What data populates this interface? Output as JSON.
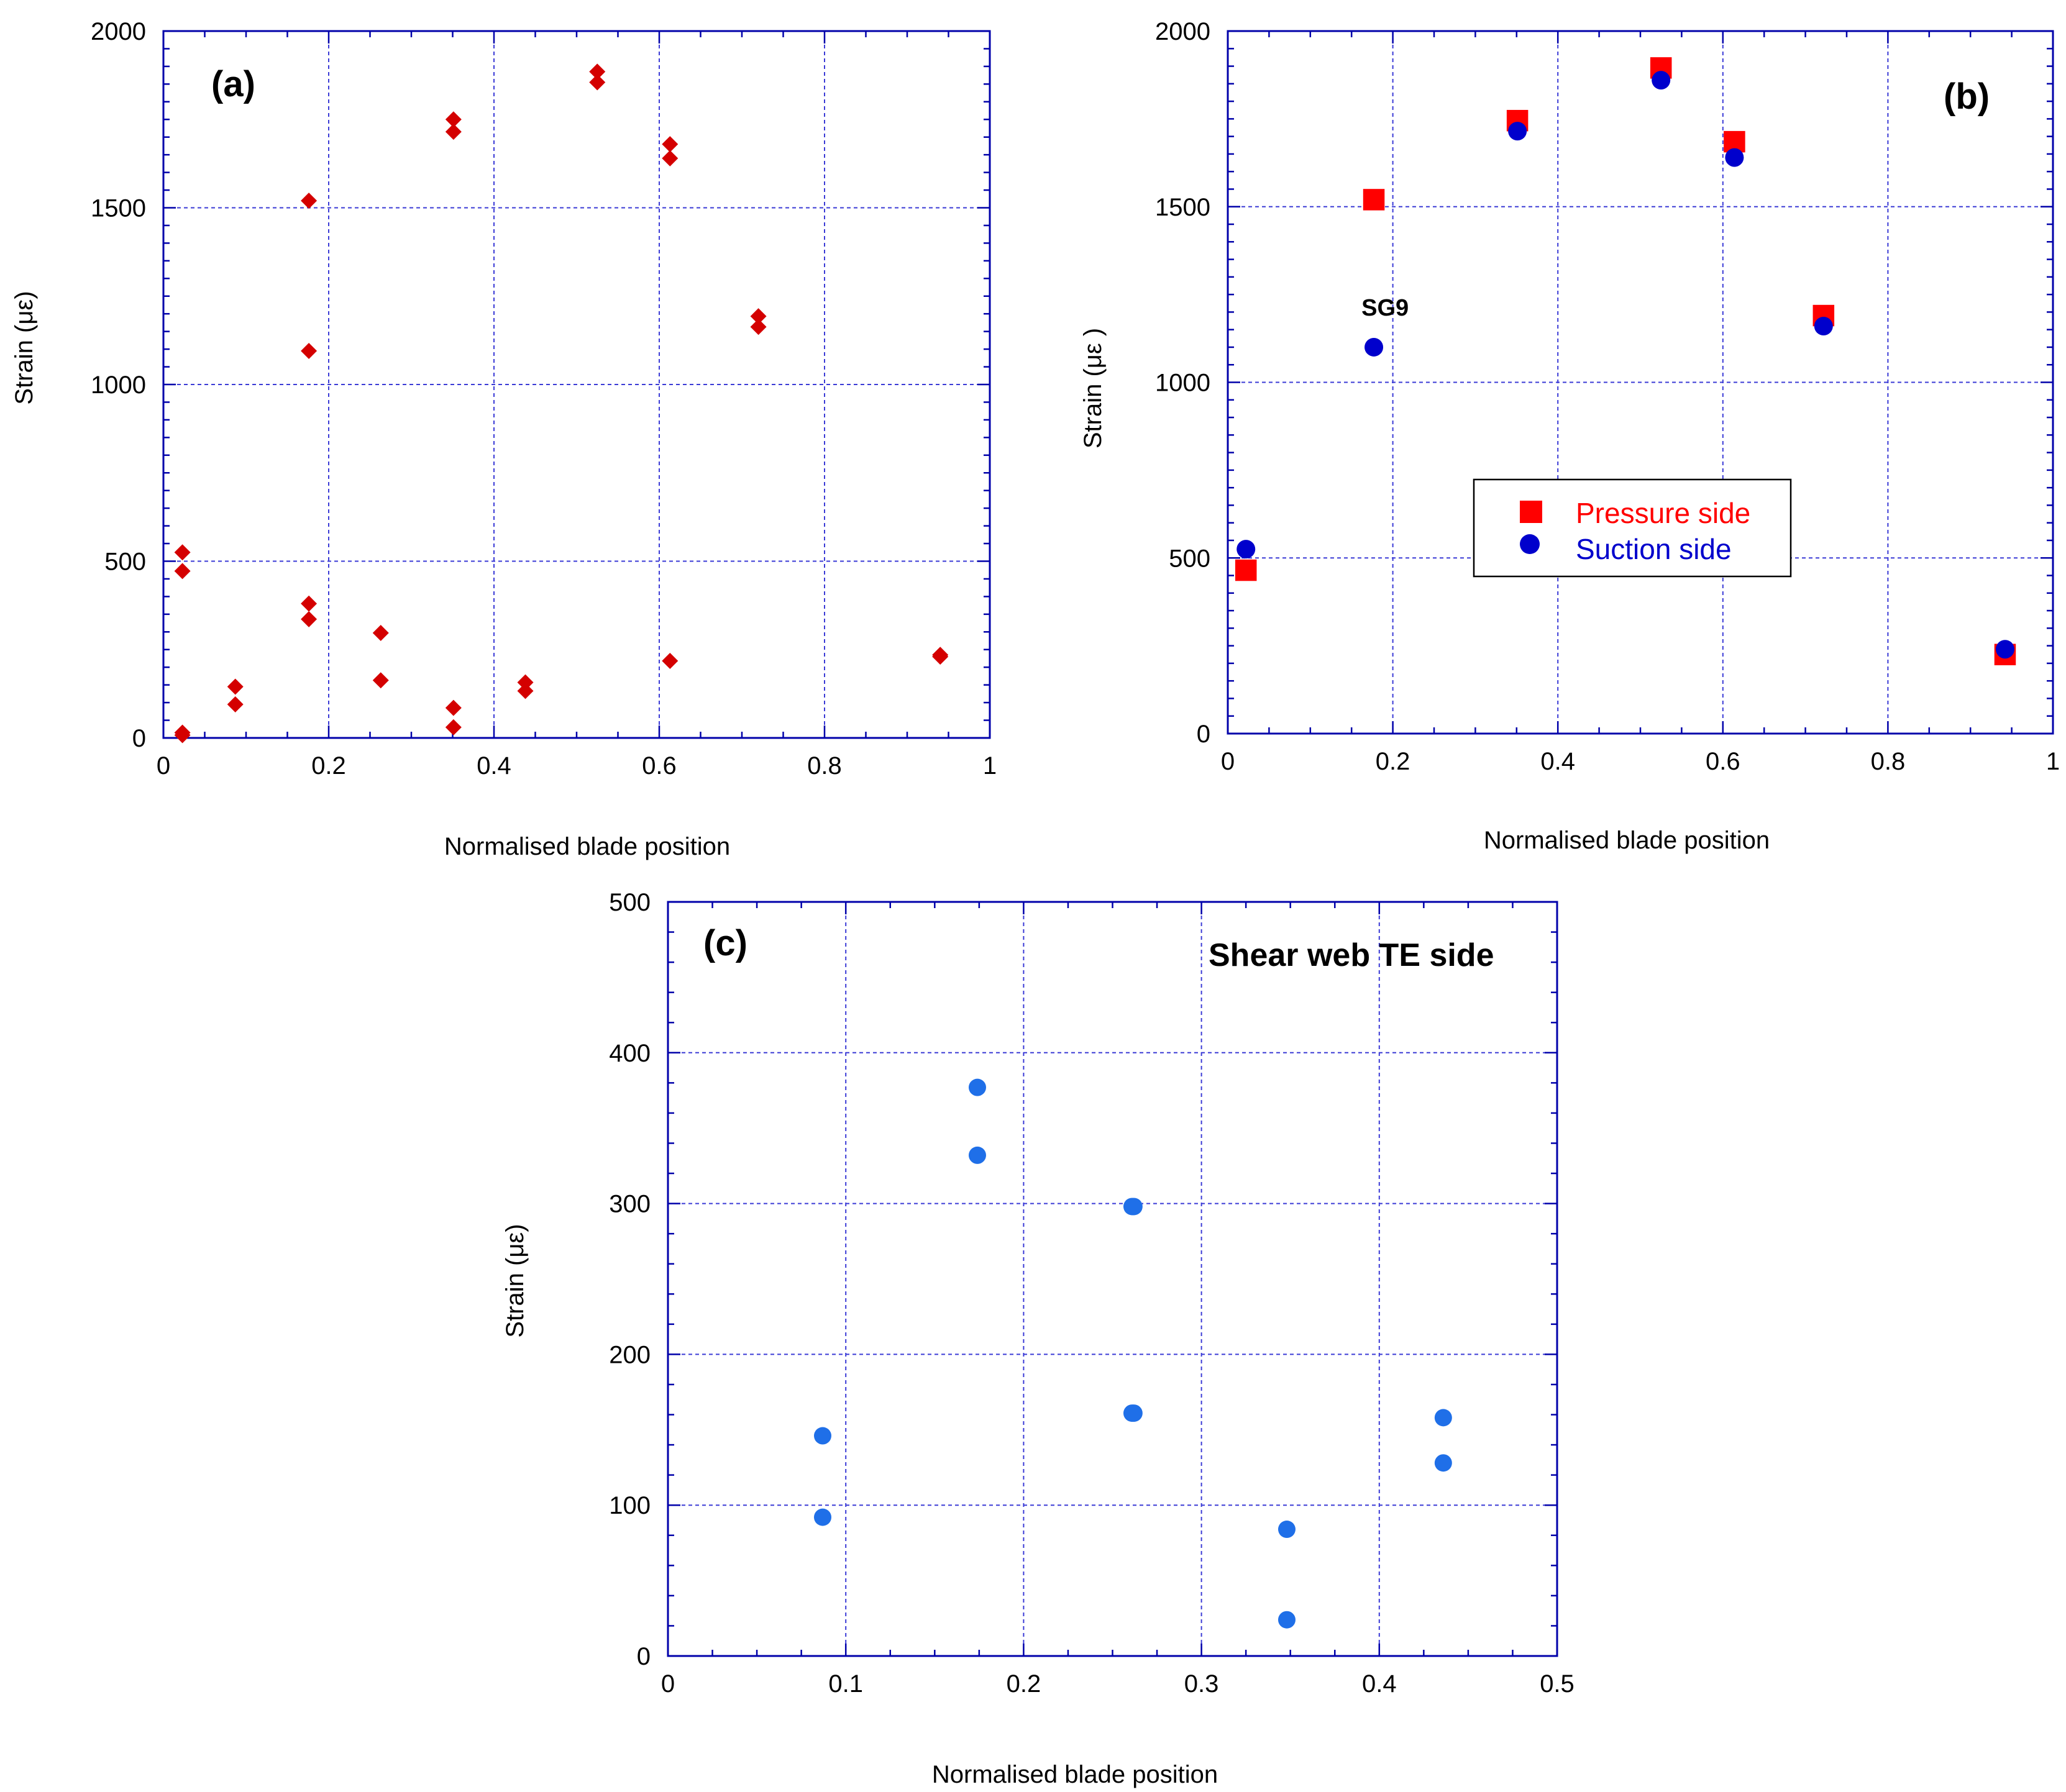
{
  "chart_data": [
    {
      "id": "a",
      "type": "scatter",
      "panel_label": "(a)",
      "xlabel": "Normalised blade position",
      "ylabel": "Strain (με)",
      "xlim": [
        0,
        1
      ],
      "ylim": [
        0,
        2000
      ],
      "xticks": [
        0,
        0.2,
        0.4,
        0.6,
        0.8,
        1
      ],
      "yticks": [
        0,
        500,
        1000,
        1500,
        2000
      ],
      "xtick_labels": [
        "0",
        "0.2",
        "0.4",
        "0.6",
        "0.8",
        "1"
      ],
      "ytick_labels": [
        "0",
        "500",
        "1000",
        "1500",
        "2000"
      ],
      "grid": true,
      "series": [
        {
          "name": "Strain",
          "marker": "diamond",
          "color": "#d40000",
          "x": [
            0.023,
            0.023,
            0.023,
            0.023,
            0.087,
            0.087,
            0.176,
            0.176,
            0.176,
            0.176,
            0.263,
            0.263,
            0.351,
            0.351,
            0.351,
            0.351,
            0.438,
            0.438,
            0.525,
            0.525,
            0.613,
            0.613,
            0.613,
            0.72,
            0.72,
            0.94,
            0.94
          ],
          "y": [
            525,
            472,
            15,
            8,
            145,
            95,
            1520,
            1095,
            380,
            336,
            297,
            163,
            1750,
            1715,
            85,
            30,
            157,
            133,
            1885,
            1855,
            1680,
            1640,
            218,
            1193,
            1163,
            235,
            230
          ]
        }
      ]
    },
    {
      "id": "b",
      "type": "scatter",
      "panel_label": "(b)",
      "xlabel": "Normalised blade position",
      "ylabel": "Strain (με )",
      "xlim": [
        0,
        1
      ],
      "ylim": [
        0,
        2000
      ],
      "xticks": [
        0,
        0.2,
        0.4,
        0.6,
        0.8,
        1
      ],
      "yticks": [
        0,
        500,
        1000,
        1500,
        2000
      ],
      "xtick_labels": [
        "0",
        "0.2",
        "0.4",
        "0.6",
        "0.8",
        "1"
      ],
      "ytick_labels": [
        "0",
        "500",
        "1000",
        "1500",
        "2000"
      ],
      "grid": true,
      "legend": "center-right",
      "annotations": [
        {
          "text": "SG9",
          "x": 0.162,
          "y": 1190
        }
      ],
      "series": [
        {
          "name": "Pressure side",
          "marker": "square",
          "color": "#ff0000",
          "x": [
            0.022,
            0.177,
            0.351,
            0.525,
            0.614,
            0.722,
            0.942
          ],
          "y": [
            465,
            1520,
            1745,
            1895,
            1685,
            1190,
            225
          ]
        },
        {
          "name": "Suction side",
          "marker": "circle",
          "color": "#0000cc",
          "x": [
            0.022,
            0.177,
            0.351,
            0.525,
            0.614,
            0.722,
            0.942
          ],
          "y": [
            525,
            1100,
            1715,
            1860,
            1640,
            1160,
            240
          ]
        }
      ]
    },
    {
      "id": "c",
      "type": "scatter",
      "panel_label": "(c)",
      "title": "Shear web TE side",
      "xlabel": "Normalised blade position",
      "ylabel": "Strain (με)",
      "xlim": [
        0,
        0.5
      ],
      "ylim": [
        0,
        500
      ],
      "xticks": [
        0,
        0.1,
        0.2,
        0.3,
        0.4,
        0.5
      ],
      "yticks": [
        0,
        100,
        200,
        300,
        400,
        500
      ],
      "xtick_labels": [
        "0",
        "0.1",
        "0.2",
        "0.3",
        "0.4",
        "0.5"
      ],
      "ytick_labels": [
        "0",
        "100",
        "200",
        "300",
        "400",
        "500"
      ],
      "grid": true,
      "series": [
        {
          "name": "Shear web TE side",
          "marker": "circle",
          "color": "#1f6fe8",
          "x": [
            0.087,
            0.087,
            0.174,
            0.174,
            0.261,
            0.262,
            0.261,
            0.262,
            0.348,
            0.348,
            0.436,
            0.436
          ],
          "y": [
            146,
            92,
            377,
            332,
            298,
            298,
            161,
            161,
            84,
            24,
            158,
            128
          ]
        }
      ]
    }
  ]
}
